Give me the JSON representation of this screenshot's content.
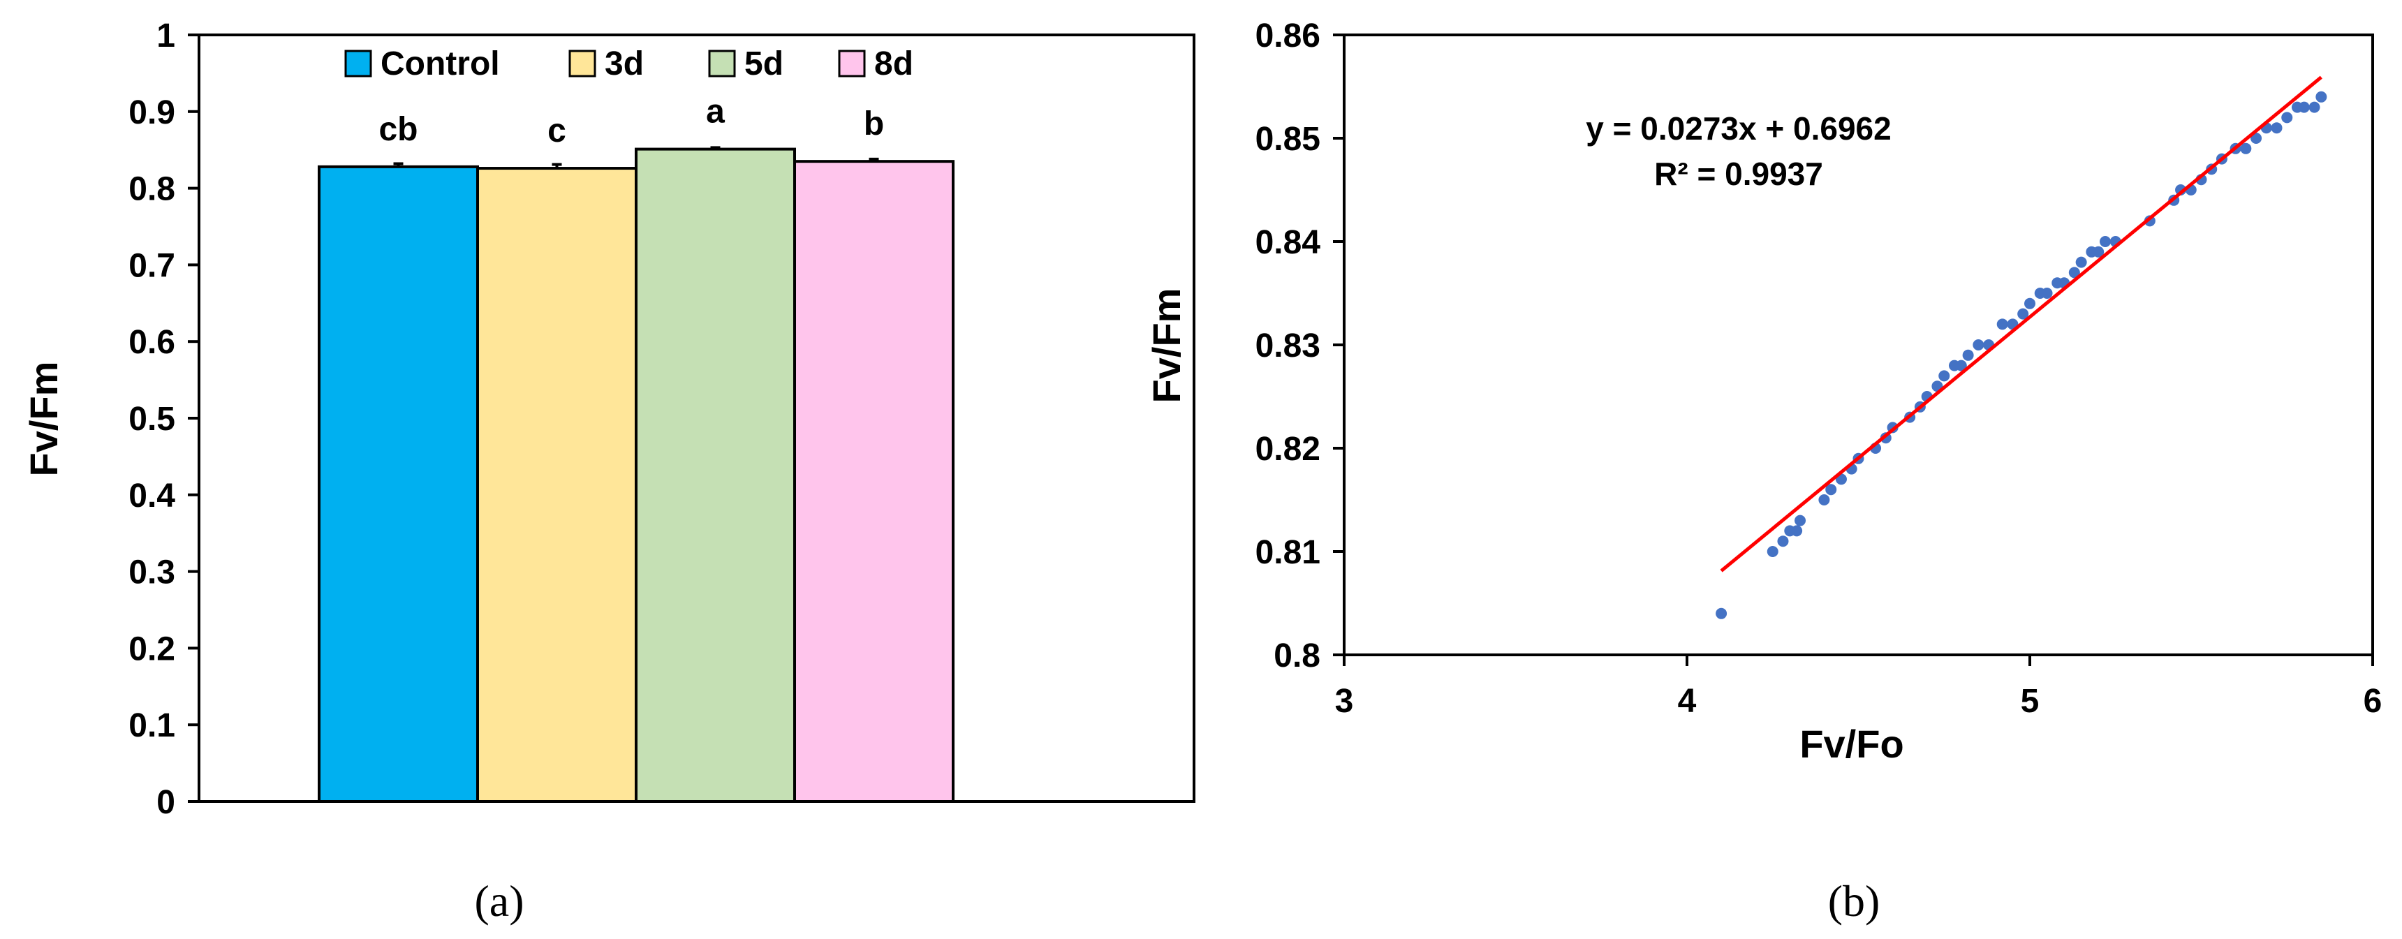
{
  "chart_data": [
    {
      "type": "bar",
      "panel_label": "(a)",
      "ylabel": "Fv/Fm",
      "ylim": [
        0,
        1
      ],
      "ytick_step": 0.1,
      "yticks": [
        "0",
        "0.1",
        "0.2",
        "0.3",
        "0.4",
        "0.5",
        "0.6",
        "0.7",
        "0.8",
        "0.9",
        "1"
      ],
      "legend_placement": "top",
      "series": [
        {
          "name": "Control",
          "value": 0.828,
          "error": 0.004,
          "sig_label": "cb",
          "color": "#00b0f0"
        },
        {
          "name": "3d",
          "value": 0.826,
          "error": 0.005,
          "sig_label": "c",
          "color": "#ffe699"
        },
        {
          "name": "5d",
          "value": 0.851,
          "error": 0.002,
          "sig_label": "a",
          "color": "#c5e0b4"
        },
        {
          "name": "8d",
          "value": 0.835,
          "error": 0.003,
          "sig_label": "b",
          "color": "#ffc5ec"
        }
      ]
    },
    {
      "type": "scatter",
      "panel_label": "(b)",
      "xlabel": "Fv/Fo",
      "ylabel": "Fv/Fm",
      "xlim": [
        3,
        6
      ],
      "ylim": [
        0.8,
        0.86
      ],
      "xticks": [
        "3",
        "4",
        "5",
        "6"
      ],
      "yticks": [
        "0.8",
        "0.81",
        "0.82",
        "0.83",
        "0.84",
        "0.85",
        "0.86"
      ],
      "point_color": "#4472c4",
      "trendline": {
        "slope": 0.0273,
        "intercept": 0.6962,
        "x_range": [
          4.1,
          5.85
        ],
        "color": "#ff0000"
      },
      "equation_text": "y = 0.0273x + 0.6962",
      "r2_text": "R² = 0.9937",
      "points": [
        [
          4.1,
          0.804
        ],
        [
          4.25,
          0.81
        ],
        [
          4.28,
          0.811
        ],
        [
          4.3,
          0.812
        ],
        [
          4.32,
          0.812
        ],
        [
          4.33,
          0.813
        ],
        [
          4.4,
          0.815
        ],
        [
          4.42,
          0.816
        ],
        [
          4.45,
          0.817
        ],
        [
          4.48,
          0.818
        ],
        [
          4.5,
          0.819
        ],
        [
          4.55,
          0.82
        ],
        [
          4.58,
          0.821
        ],
        [
          4.6,
          0.822
        ],
        [
          4.65,
          0.823
        ],
        [
          4.68,
          0.824
        ],
        [
          4.7,
          0.825
        ],
        [
          4.73,
          0.826
        ],
        [
          4.75,
          0.827
        ],
        [
          4.78,
          0.828
        ],
        [
          4.8,
          0.828
        ],
        [
          4.82,
          0.829
        ],
        [
          4.85,
          0.83
        ],
        [
          4.88,
          0.83
        ],
        [
          4.92,
          0.832
        ],
        [
          4.95,
          0.832
        ],
        [
          4.98,
          0.833
        ],
        [
          5.0,
          0.834
        ],
        [
          5.03,
          0.835
        ],
        [
          5.05,
          0.835
        ],
        [
          5.08,
          0.836
        ],
        [
          5.1,
          0.836
        ],
        [
          5.13,
          0.837
        ],
        [
          5.15,
          0.838
        ],
        [
          5.18,
          0.839
        ],
        [
          5.2,
          0.839
        ],
        [
          5.22,
          0.84
        ],
        [
          5.25,
          0.84
        ],
        [
          5.35,
          0.842
        ],
        [
          5.42,
          0.844
        ],
        [
          5.44,
          0.845
        ],
        [
          5.47,
          0.845
        ],
        [
          5.5,
          0.846
        ],
        [
          5.53,
          0.847
        ],
        [
          5.56,
          0.848
        ],
        [
          5.6,
          0.849
        ],
        [
          5.63,
          0.849
        ],
        [
          5.66,
          0.85
        ],
        [
          5.69,
          0.851
        ],
        [
          5.72,
          0.851
        ],
        [
          5.75,
          0.852
        ],
        [
          5.78,
          0.853
        ],
        [
          5.8,
          0.853
        ],
        [
          5.83,
          0.853
        ],
        [
          5.85,
          0.854
        ]
      ]
    }
  ]
}
